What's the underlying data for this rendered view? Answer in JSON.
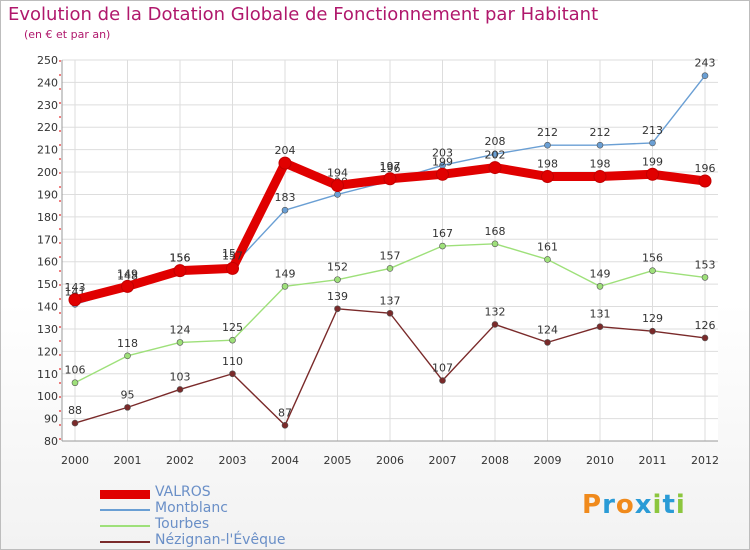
{
  "header": {
    "title": "Evolution de la Dotation Globale de Fonctionnement par Habitant",
    "subtitle": "(en € et par an)"
  },
  "logo": {
    "text": "Proxiti"
  },
  "chart_data": {
    "type": "line",
    "title": "Evolution de la Dotation Globale de Fonctionnement par Habitant",
    "subtitle": "(en € et par an)",
    "categories": [
      "2000",
      "2001",
      "2002",
      "2003",
      "2004",
      "2005",
      "2006",
      "2007",
      "2008",
      "2009",
      "2010",
      "2011",
      "2012"
    ],
    "ylim": [
      80,
      250
    ],
    "yticks": [
      80,
      90,
      100,
      110,
      120,
      130,
      140,
      150,
      160,
      170,
      180,
      190,
      200,
      210,
      220,
      230,
      240,
      250
    ],
    "grid": true,
    "legend_position": "bottom-left",
    "series": [
      {
        "name": "VALROS",
        "color": "#e00000",
        "values": [
          143,
          149,
          156,
          157,
          204,
          194,
          197,
          199,
          202,
          198,
          198,
          199,
          196
        ]
      },
      {
        "name": "Montblanc",
        "color": "#6a9fd4",
        "values": [
          141,
          148,
          156,
          158,
          183,
          190,
          196,
          203,
          208,
          212,
          212,
          213,
          243
        ]
      },
      {
        "name": "Tourbes",
        "color": "#9ee07a",
        "values": [
          106,
          118,
          124,
          125,
          149,
          152,
          157,
          167,
          168,
          161,
          149,
          156,
          153
        ]
      },
      {
        "name": "Nézignan-l'Évêque",
        "color": "#7a2a2a",
        "values": [
          88,
          95,
          103,
          110,
          87,
          139,
          137,
          107,
          132,
          124,
          131,
          129,
          126
        ]
      }
    ]
  }
}
